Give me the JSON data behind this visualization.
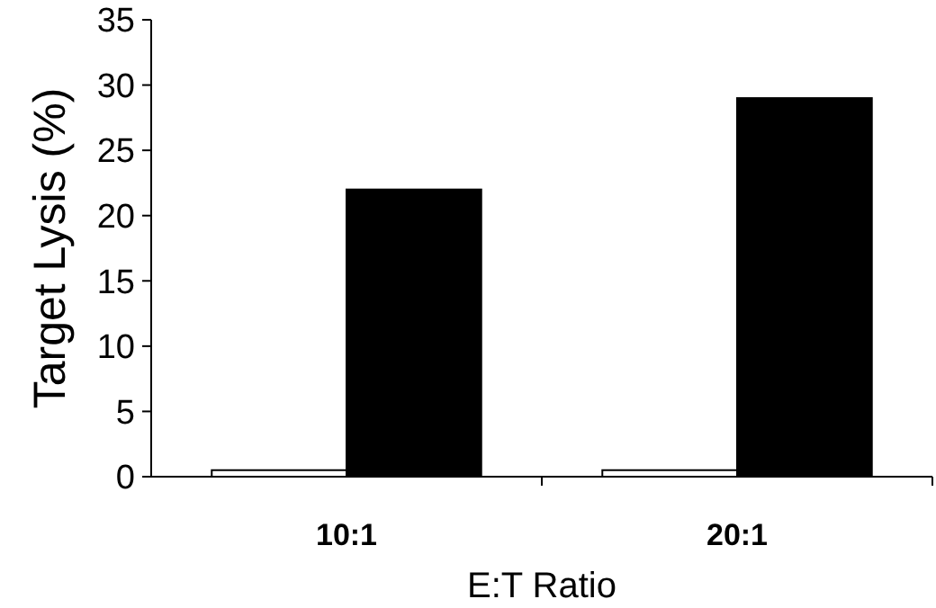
{
  "chart_data": {
    "type": "bar",
    "xlabel": "E:T Ratio",
    "ylabel": "Target Lysis (%)",
    "categories": [
      "10:1",
      "20:1"
    ],
    "series": [
      {
        "color": "#ffffff",
        "values": [
          0.5,
          0.5
        ]
      },
      {
        "color": "#000000",
        "values": [
          22,
          29
        ]
      }
    ],
    "ylim": [
      0,
      35
    ],
    "yticks": [
      0,
      5,
      10,
      15,
      20,
      25,
      30,
      35
    ]
  }
}
